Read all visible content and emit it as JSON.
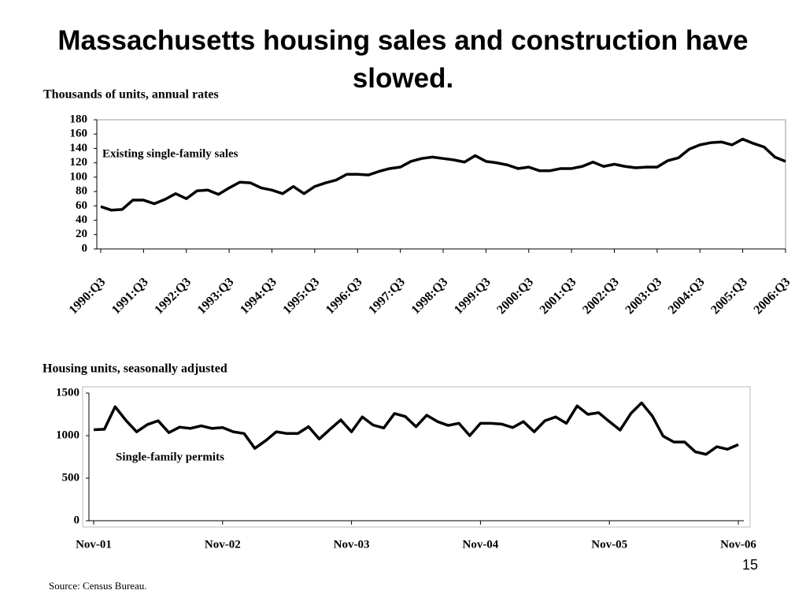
{
  "title": "Massachusetts housing sales and construction have slowed.",
  "page_number": "15",
  "source": "Source: Census Bureau.",
  "chart_data": [
    {
      "type": "line",
      "subtitle": "Thousands of  units, annual rates",
      "categories": [
        "1990:Q3",
        null,
        null,
        null,
        "1991:Q3",
        null,
        null,
        null,
        "1992:Q3",
        null,
        null,
        null,
        "1993:Q3",
        null,
        null,
        null,
        "1994:Q3",
        null,
        null,
        null,
        "1995:Q3",
        null,
        null,
        null,
        "1996:Q3",
        null,
        null,
        null,
        "1997:Q3",
        null,
        null,
        null,
        "1998:Q3",
        null,
        null,
        null,
        "1999:Q3",
        null,
        null,
        null,
        "2000:Q3",
        null,
        null,
        null,
        "2001:Q3",
        null,
        null,
        null,
        "2002:Q3",
        null,
        null,
        null,
        "2003:Q3",
        null,
        null,
        null,
        "2004:Q3",
        null,
        null,
        null,
        "2005:Q3",
        null,
        null,
        null,
        "2006:Q3"
      ],
      "series": [
        {
          "name": "Existing single-family sales",
          "color": "#000000",
          "values": [
            59,
            54,
            55,
            68,
            68,
            63,
            69,
            77,
            70,
            81,
            82,
            76,
            85,
            93,
            92,
            85,
            82,
            77,
            87,
            77,
            87,
            92,
            96,
            104,
            104,
            103,
            108,
            112,
            114,
            122,
            126,
            128,
            126,
            124,
            121,
            130,
            122,
            120,
            117,
            112,
            114,
            109,
            109,
            112,
            112,
            115,
            121,
            115,
            118,
            115,
            113,
            114,
            114,
            123,
            127,
            139,
            145,
            148,
            149,
            145,
            153,
            147,
            142,
            128,
            122
          ]
        }
      ],
      "ylim": [
        0,
        180
      ],
      "yticks": [
        0,
        20,
        40,
        60,
        80,
        100,
        120,
        140,
        160,
        180
      ]
    },
    {
      "type": "line",
      "subtitle": "Housing units, seasonally adjusted",
      "categories": [
        "Nov-01",
        null,
        null,
        null,
        null,
        null,
        null,
        null,
        null,
        null,
        null,
        null,
        "Nov-02",
        null,
        null,
        null,
        null,
        null,
        null,
        null,
        null,
        null,
        null,
        null,
        "Nov-03",
        null,
        null,
        null,
        null,
        null,
        null,
        null,
        null,
        null,
        null,
        null,
        "Nov-04",
        null,
        null,
        null,
        null,
        null,
        null,
        null,
        null,
        null,
        null,
        null,
        "Nov-05",
        null,
        null,
        null,
        null,
        null,
        null,
        null,
        null,
        null,
        null,
        null,
        "Nov-06"
      ],
      "series": [
        {
          "name": "Single-family permits",
          "color": "#000000",
          "values": [
            1070,
            1075,
            1340,
            1180,
            1045,
            1130,
            1175,
            1035,
            1100,
            1085,
            1115,
            1085,
            1095,
            1045,
            1025,
            850,
            940,
            1045,
            1025,
            1025,
            1105,
            960,
            1075,
            1185,
            1045,
            1220,
            1125,
            1090,
            1260,
            1225,
            1105,
            1240,
            1165,
            1120,
            1145,
            1000,
            1145,
            1145,
            1135,
            1095,
            1165,
            1045,
            1175,
            1220,
            1145,
            1350,
            1250,
            1270,
            1165,
            1065,
            1260,
            1385,
            1230,
            995,
            925,
            925,
            810,
            780,
            870,
            840,
            895
          ]
        }
      ],
      "ylim": [
        0,
        1500
      ],
      "yticks": [
        0,
        500,
        1000,
        1500
      ]
    }
  ]
}
